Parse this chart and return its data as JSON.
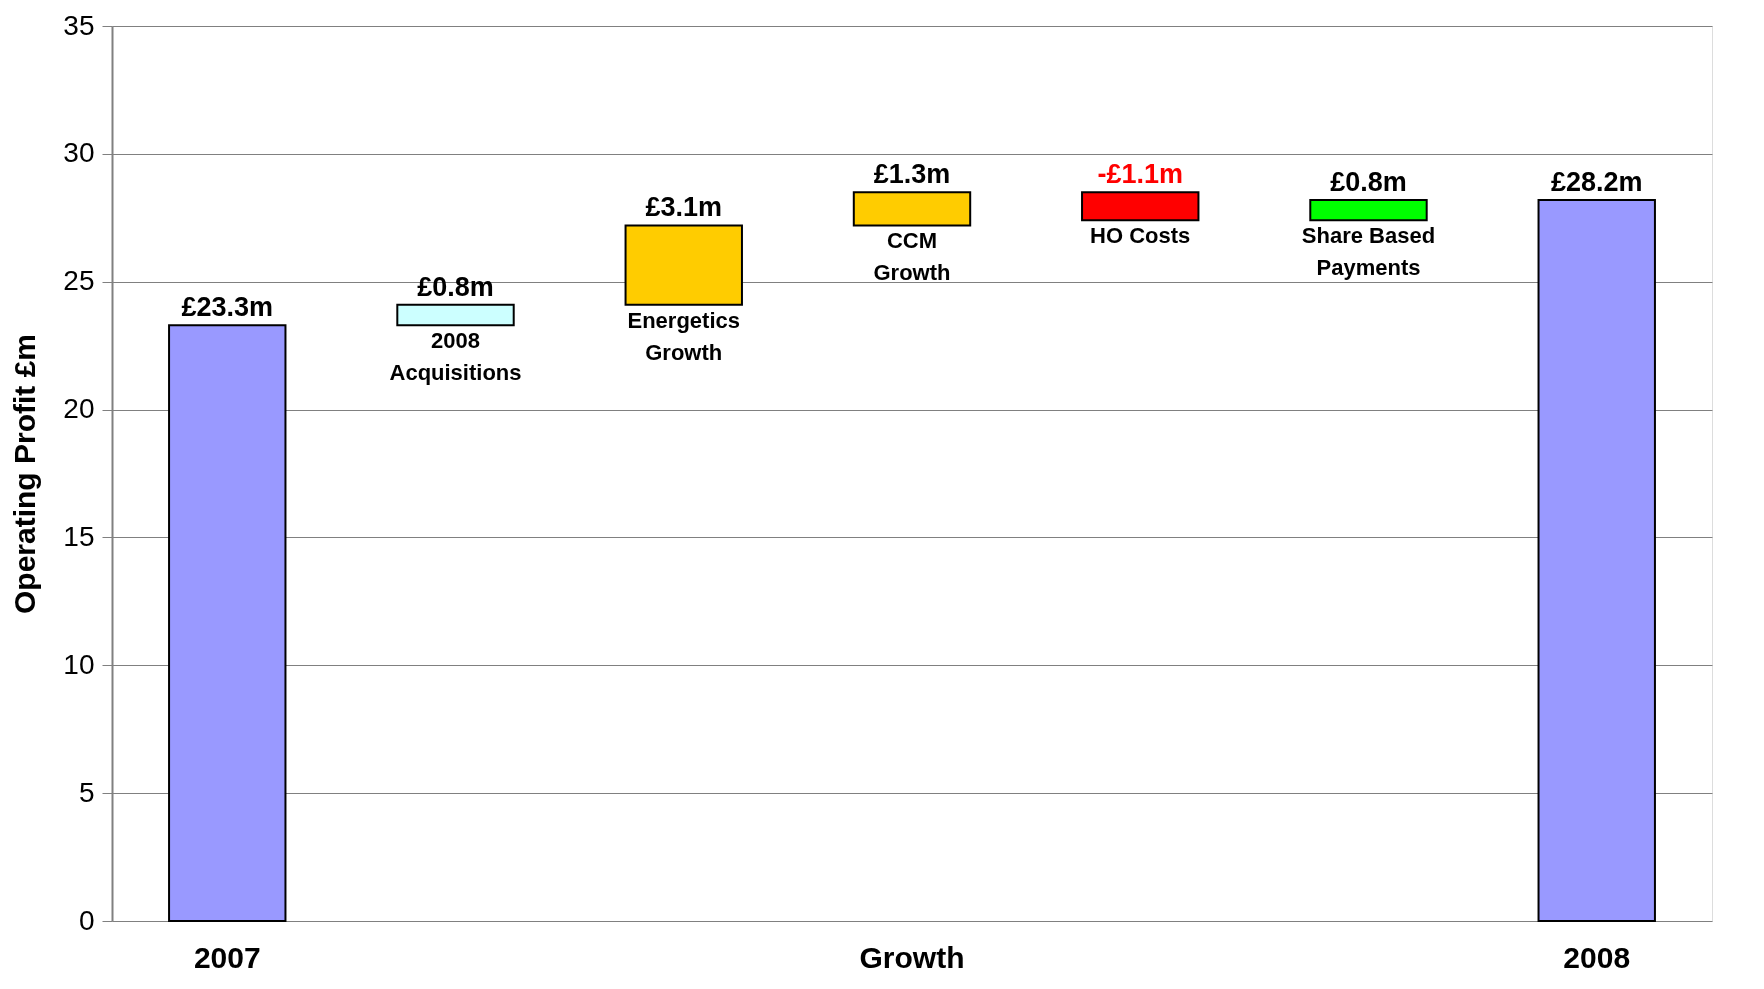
{
  "chart_data": {
    "type": "bar",
    "ylabel": "Operating Profit £m",
    "categories": [
      "2007",
      null,
      null,
      "Growth",
      null,
      null,
      "2008"
    ],
    "values": [
      23.3,
      0.8,
      3.1,
      1.3,
      -1.1,
      0.8,
      28.2
    ],
    "base": [
      0,
      23.3,
      24.1,
      27.2,
      28.5,
      27.4,
      0
    ],
    "colors": [
      "#9999ff",
      "#ccffff",
      "#ffcc00",
      "#ffcc00",
      "#ff0000",
      "#00ff00",
      "#9999ff"
    ],
    "value_labels": [
      "£23.3m",
      "£0.8m",
      "£3.1m",
      "£1.3m",
      "-£1.1m",
      "£0.8m",
      "£28.2m"
    ],
    "annotations": [
      "2008\nAcquisitions",
      "Energetics\nGrowth",
      "CCM\nGrowth",
      "HO Costs",
      "Share Based\nPayments"
    ],
    "ylim": [
      0,
      35
    ],
    "yticks": [
      0,
      5,
      10,
      15,
      20,
      25,
      30,
      35
    ],
    "grid": "y"
  }
}
